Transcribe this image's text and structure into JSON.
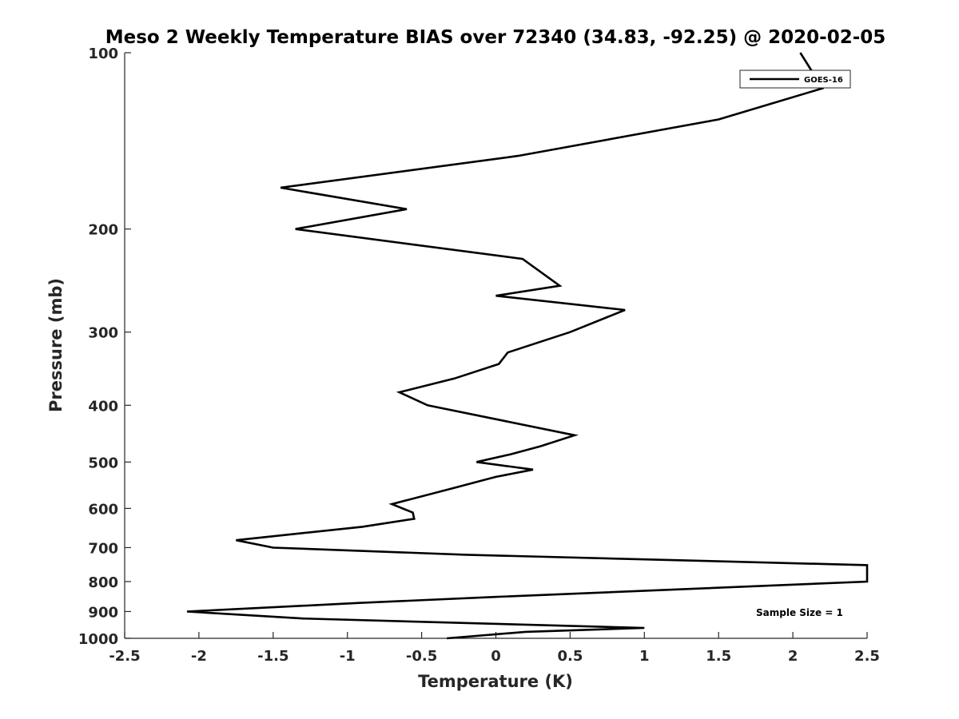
{
  "chart_data": {
    "type": "line",
    "title": "Meso 2 Weekly Temperature BIAS over 72340 (34.83, -92.25) @ 2020-02-05",
    "xlabel": "Temperature (K)",
    "ylabel": "Pressure (mb)",
    "xlim": [
      -2.5,
      2.5
    ],
    "ylim": [
      100,
      1000
    ],
    "y_scale": "log",
    "y_reversed": true,
    "x_ticks": [
      -2.5,
      -2,
      -1.5,
      -1,
      -0.5,
      0,
      0.5,
      1,
      1.5,
      2,
      2.5
    ],
    "x_tick_labels": [
      "-2.5",
      "-2",
      "-1.5",
      "-1",
      "-0.5",
      "0",
      "0.5",
      "1",
      "1.5",
      "2",
      "2.5"
    ],
    "y_ticks": [
      100,
      200,
      300,
      400,
      500,
      600,
      700,
      800,
      900,
      1000
    ],
    "y_tick_labels": [
      "100",
      "200",
      "300",
      "400",
      "500",
      "600",
      "700",
      "800",
      "900",
      "1000"
    ],
    "grid": false,
    "legend": {
      "placement": "top-right",
      "entries": [
        "GOES-16"
      ]
    },
    "annotation": "Sample Size = 1",
    "series": [
      {
        "name": "GOES-16",
        "color": "#000000",
        "points": [
          {
            "x": 2.05,
            "y": 100
          },
          {
            "x": 2.2,
            "y": 115
          },
          {
            "x": 1.5,
            "y": 130
          },
          {
            "x": 0.15,
            "y": 150
          },
          {
            "x": -1.45,
            "y": 170
          },
          {
            "x": -0.6,
            "y": 185
          },
          {
            "x": -1.35,
            "y": 200
          },
          {
            "x": 0.18,
            "y": 225
          },
          {
            "x": 0.43,
            "y": 250
          },
          {
            "x": 0.0,
            "y": 260
          },
          {
            "x": 0.87,
            "y": 275
          },
          {
            "x": 0.5,
            "y": 300
          },
          {
            "x": 0.08,
            "y": 325
          },
          {
            "x": 0.02,
            "y": 340
          },
          {
            "x": -0.28,
            "y": 360
          },
          {
            "x": -0.65,
            "y": 380
          },
          {
            "x": -0.46,
            "y": 400
          },
          {
            "x": 0.53,
            "y": 450
          },
          {
            "x": 0.3,
            "y": 470
          },
          {
            "x": 0.1,
            "y": 485
          },
          {
            "x": -0.13,
            "y": 500
          },
          {
            "x": 0.25,
            "y": 515
          },
          {
            "x": 0.0,
            "y": 530
          },
          {
            "x": -0.3,
            "y": 555
          },
          {
            "x": -0.7,
            "y": 590
          },
          {
            "x": -0.56,
            "y": 610
          },
          {
            "x": -0.55,
            "y": 625
          },
          {
            "x": -0.9,
            "y": 645
          },
          {
            "x": -1.75,
            "y": 680
          },
          {
            "x": -1.5,
            "y": 700
          },
          {
            "x": -0.2,
            "y": 720
          },
          {
            "x": 2.5,
            "y": 750
          },
          {
            "x": 2.5,
            "y": 800
          },
          {
            "x": -0.02,
            "y": 850
          },
          {
            "x": -0.92,
            "y": 870
          },
          {
            "x": -2.08,
            "y": 900
          },
          {
            "x": -1.3,
            "y": 925
          },
          {
            "x": 1.0,
            "y": 960
          },
          {
            "x": 0.2,
            "y": 975
          },
          {
            "x": -0.33,
            "y": 1000
          }
        ]
      }
    ]
  }
}
